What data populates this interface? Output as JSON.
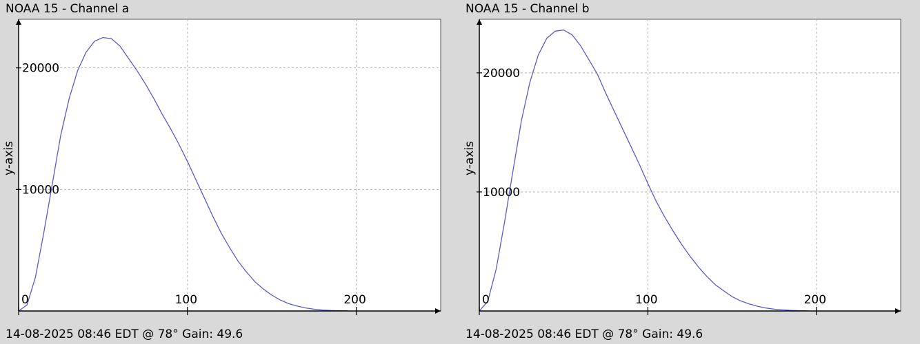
{
  "colors": {
    "background": "#d9d9d9",
    "plot_area": "#ffffff",
    "line": "#5b5bc8",
    "grid": "#b4b4b4",
    "axis": "#000000"
  },
  "panels": [
    {
      "title": "NOAA 15 - Channel a",
      "footer": "14-08-2025 08:46 EDT @ 78° Gain: 49.6",
      "ylabel": "y-axis"
    },
    {
      "title": "NOAA 15 - Channel b",
      "footer": "14-08-2025 08:46 EDT @ 78° Gain: 49.6",
      "ylabel": "y-axis"
    }
  ],
  "chart_data": [
    {
      "type": "line",
      "title": "NOAA 15 - Channel a",
      "xlabel": "",
      "ylabel": "y-axis",
      "xlim": [
        0,
        250
      ],
      "ylim": [
        0,
        24000
      ],
      "xticks": [
        0,
        100,
        200
      ],
      "yticks": [
        10000,
        20000
      ],
      "grid": true,
      "x": [
        0,
        5,
        10,
        15,
        20,
        25,
        30,
        35,
        40,
        45,
        50,
        55,
        60,
        65,
        70,
        75,
        80,
        85,
        90,
        95,
        100,
        105,
        110,
        115,
        120,
        125,
        130,
        135,
        140,
        145,
        150,
        155,
        160,
        165,
        170,
        175,
        180,
        185,
        190,
        195
      ],
      "y": [
        0,
        500,
        2800,
        6500,
        10500,
        14500,
        17500,
        19800,
        21300,
        22200,
        22500,
        22400,
        21800,
        20800,
        19800,
        18700,
        17500,
        16200,
        15000,
        13700,
        12300,
        10800,
        9300,
        7800,
        6400,
        5200,
        4100,
        3200,
        2400,
        1800,
        1300,
        900,
        600,
        400,
        250,
        150,
        80,
        40,
        20,
        10
      ]
    },
    {
      "type": "line",
      "title": "NOAA 15 - Channel b",
      "xlabel": "",
      "ylabel": "y-axis",
      "xlim": [
        0,
        250
      ],
      "ylim": [
        0,
        24500
      ],
      "xticks": [
        0,
        100,
        200
      ],
      "yticks": [
        10000,
        20000
      ],
      "grid": true,
      "x": [
        0,
        5,
        10,
        15,
        20,
        25,
        30,
        35,
        40,
        45,
        50,
        55,
        60,
        65,
        70,
        75,
        80,
        85,
        90,
        95,
        100,
        105,
        110,
        115,
        120,
        125,
        130,
        135,
        140,
        145,
        150,
        155,
        160,
        165,
        170,
        175,
        180,
        185,
        190,
        195
      ],
      "y": [
        0,
        800,
        3500,
        7500,
        11800,
        16000,
        19200,
        21500,
        22900,
        23500,
        23600,
        23200,
        22300,
        21100,
        19900,
        18300,
        16800,
        15300,
        13800,
        12300,
        10700,
        9200,
        7900,
        6700,
        5600,
        4600,
        3700,
        2900,
        2200,
        1700,
        1200,
        850,
        600,
        400,
        250,
        150,
        90,
        50,
        20,
        10
      ]
    }
  ]
}
